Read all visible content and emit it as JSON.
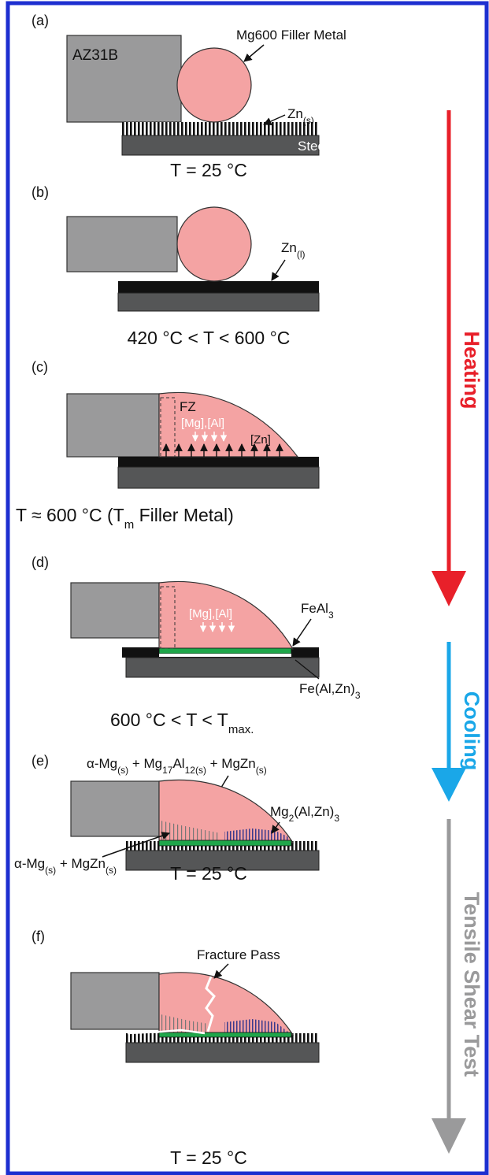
{
  "panels": [
    {
      "label": "(a)",
      "base_metal": "AZ31B",
      "filler": "Mg600 Filler Metal",
      "zinc": [
        "Zn",
        "(s)"
      ],
      "substrate": "Steel",
      "condition": "T = 25 °C"
    },
    {
      "label": "(b)",
      "zinc": [
        "Zn",
        "(l)"
      ],
      "condition": "420 °C < T < 600 °C"
    },
    {
      "label": "(c)",
      "zone": "FZ",
      "solutes": "[Mg],[Al]",
      "zinc": "[Zn]",
      "condition": [
        "T ≈ 600 °C (T",
        "m",
        " Filler Metal)"
      ]
    },
    {
      "label": "(d)",
      "solutes": "[Mg],[Al]",
      "layer_top": [
        "FeAl",
        "3"
      ],
      "layer_bottom": [
        "Fe(Al,Zn)",
        "3"
      ],
      "condition": [
        "600 °C < T < T",
        "max."
      ]
    },
    {
      "label": "(e)",
      "matrix": [
        "α-Mg",
        "(s)",
        " + Mg",
        "17",
        "Al",
        "12(s)",
        " + MgZn",
        "(s)"
      ],
      "phase": [
        "Mg",
        "2",
        "(Al,Zn)",
        "3"
      ],
      "interface": [
        "α-Mg",
        "(s)",
        " + MgZn",
        "(s)"
      ],
      "condition": "T = 25 °C"
    },
    {
      "label": "(f)",
      "fracture": "Fracture Pass",
      "condition": "T = 25 °C"
    }
  ],
  "stages": [
    "Heating",
    "Cooling",
    "Tensile Shear Test"
  ]
}
